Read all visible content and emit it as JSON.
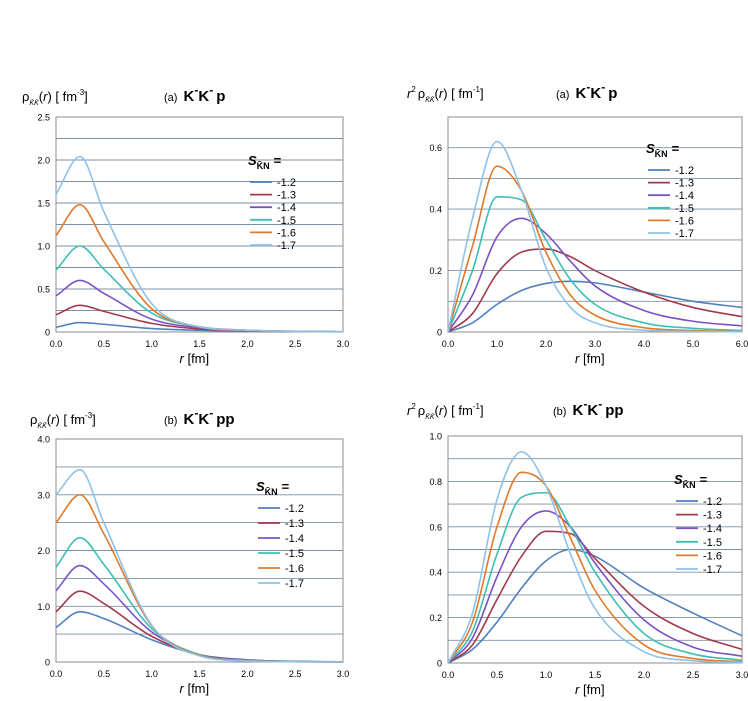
{
  "colors": {
    "s12": "#4f81bd",
    "s13": "#a23a4d",
    "s14": "#7b52c4",
    "s15": "#3cc0b2",
    "s16": "#e07a28",
    "s17": "#8ec2e8",
    "grid": "#7f8fa0",
    "frame": "#8c8c8c"
  },
  "chart_data": [
    {
      "type": "line",
      "panel": "(a)",
      "system": "K̄K̄p",
      "ylabel": "ρK̄K̄(r)  [fm⁻³]",
      "xlabel": "r  [fm]",
      "xlim": [
        0,
        3.0
      ],
      "ylim": [
        0,
        2.5
      ],
      "xticks": [
        "0.0",
        "0.5",
        "1.0",
        "1.5",
        "2.0",
        "2.5",
        "3.0"
      ],
      "yticks": [
        "0",
        "0.5",
        "1.0",
        "1.5",
        "2.0",
        "2.5"
      ],
      "legend_title": "S K̄N =",
      "legend_position": "right",
      "series": [
        {
          "name": "-1.2",
          "color_key": "s12",
          "x": [
            0,
            0.25,
            0.5,
            1.0,
            1.5,
            2.0,
            2.5,
            3.0
          ],
          "values": [
            0.055,
            0.11,
            0.09,
            0.04,
            0.02,
            0.01,
            0.005,
            0.002
          ]
        },
        {
          "name": "-1.3",
          "color_key": "s13",
          "x": [
            0,
            0.25,
            0.5,
            1.0,
            1.5,
            2.0,
            2.5,
            3.0
          ],
          "values": [
            0.2,
            0.31,
            0.24,
            0.1,
            0.035,
            0.015,
            0.007,
            0.003
          ]
        },
        {
          "name": "-1.4",
          "color_key": "s14",
          "x": [
            0,
            0.25,
            0.5,
            1.0,
            1.5,
            2.0,
            2.5,
            3.0
          ],
          "values": [
            0.42,
            0.6,
            0.45,
            0.15,
            0.05,
            0.02,
            0.008,
            0.003
          ]
        },
        {
          "name": "-1.5",
          "color_key": "s15",
          "x": [
            0,
            0.25,
            0.5,
            1.0,
            1.5,
            2.0,
            2.5,
            3.0
          ],
          "values": [
            0.72,
            1.0,
            0.73,
            0.22,
            0.06,
            0.02,
            0.008,
            0.003
          ]
        },
        {
          "name": "-1.6",
          "color_key": "s16",
          "x": [
            0,
            0.25,
            0.5,
            1.0,
            1.5,
            2.0,
            2.5,
            3.0
          ],
          "values": [
            1.12,
            1.48,
            1.05,
            0.27,
            0.06,
            0.02,
            0.007,
            0.003
          ]
        },
        {
          "name": "-1.7",
          "color_key": "s17",
          "x": [
            0,
            0.25,
            0.5,
            1.0,
            1.5,
            2.0,
            2.5,
            3.0
          ],
          "values": [
            1.6,
            2.04,
            1.4,
            0.33,
            0.06,
            0.02,
            0.007,
            0.003
          ]
        }
      ]
    },
    {
      "type": "line",
      "panel": "(a)",
      "system": "K̄K̄p",
      "ylabel": "r²ρK̄K̄(r)  [fm⁻¹]",
      "xlabel": "r  [fm]",
      "xlim": [
        0,
        6.0
      ],
      "ylim": [
        0,
        0.7
      ],
      "xticks": [
        "0.0",
        "1.0",
        "2.0",
        "3.0",
        "4.0",
        "5.0",
        "6.0"
      ],
      "yticks": [
        "0",
        "0.2",
        "0.4",
        "0.6"
      ],
      "legend_title": "S K̄N =",
      "legend_position": "right",
      "series": [
        {
          "name": "-1.2",
          "color_key": "s12",
          "x": [
            0,
            0.5,
            1.0,
            1.5,
            2.0,
            2.5,
            3.0,
            4.0,
            5.0,
            6.0
          ],
          "values": [
            0,
            0.03,
            0.09,
            0.135,
            0.158,
            0.165,
            0.16,
            0.13,
            0.1,
            0.08
          ]
        },
        {
          "name": "-1.3",
          "color_key": "s13",
          "x": [
            0,
            0.5,
            1.0,
            1.5,
            2.0,
            2.5,
            3.0,
            4.0,
            5.0,
            6.0
          ],
          "values": [
            0,
            0.06,
            0.19,
            0.26,
            0.27,
            0.245,
            0.2,
            0.13,
            0.08,
            0.05
          ]
        },
        {
          "name": "-1.4",
          "color_key": "s14",
          "x": [
            0,
            0.5,
            1.0,
            1.5,
            2.0,
            2.5,
            3.0,
            4.0,
            5.0,
            6.0
          ],
          "values": [
            0,
            0.12,
            0.31,
            0.37,
            0.32,
            0.23,
            0.15,
            0.07,
            0.035,
            0.02
          ]
        },
        {
          "name": "-1.5",
          "color_key": "s15",
          "x": [
            0,
            0.5,
            1.0,
            1.5,
            2.0,
            2.5,
            3.0,
            4.0,
            5.0,
            6.0
          ],
          "values": [
            0,
            0.2,
            0.44,
            0.43,
            0.3,
            0.17,
            0.09,
            0.03,
            0.012,
            0.005
          ]
        },
        {
          "name": "-1.6",
          "color_key": "s16",
          "x": [
            0,
            0.5,
            1.0,
            1.5,
            2.0,
            2.5,
            3.0,
            4.0,
            5.0,
            6.0
          ],
          "values": [
            0,
            0.28,
            0.54,
            0.46,
            0.26,
            0.12,
            0.055,
            0.014,
            0.005,
            0.002
          ]
        },
        {
          "name": "-1.7",
          "color_key": "s17",
          "x": [
            0,
            0.5,
            1.0,
            1.5,
            2.0,
            2.5,
            3.0,
            4.0,
            5.0,
            6.0
          ],
          "values": [
            0,
            0.37,
            0.62,
            0.46,
            0.21,
            0.08,
            0.03,
            0.006,
            0.002,
            0.001
          ]
        }
      ]
    },
    {
      "type": "line",
      "panel": "(b)",
      "system": "K̄K̄pp",
      "ylabel": "ρK̄K̄(r)  [fm⁻³]",
      "xlabel": "r  [fm]",
      "xlim": [
        0,
        3.0
      ],
      "ylim": [
        0,
        4.0
      ],
      "xticks": [
        "0.0",
        "0.5",
        "1.0",
        "1.5",
        "2.0",
        "2.5",
        "3.0"
      ],
      "yticks": [
        "0",
        "1.0",
        "2.0",
        "3.0",
        "4.0"
      ],
      "legend_title": "S K̄N =",
      "legend_position": "right",
      "series": [
        {
          "name": "-1.2",
          "color_key": "s12",
          "x": [
            0,
            0.25,
            0.5,
            1.0,
            1.5,
            2.0,
            2.5,
            3.0
          ],
          "values": [
            0.62,
            0.9,
            0.78,
            0.4,
            0.13,
            0.04,
            0.012,
            0.004
          ]
        },
        {
          "name": "-1.3",
          "color_key": "s13",
          "x": [
            0,
            0.25,
            0.5,
            1.0,
            1.5,
            2.0,
            2.5,
            3.0
          ],
          "values": [
            0.9,
            1.27,
            1.05,
            0.46,
            0.13,
            0.035,
            0.01,
            0.003
          ]
        },
        {
          "name": "-1.4",
          "color_key": "s14",
          "x": [
            0,
            0.25,
            0.5,
            1.0,
            1.5,
            2.0,
            2.5,
            3.0
          ],
          "values": [
            1.28,
            1.73,
            1.4,
            0.54,
            0.13,
            0.03,
            0.008,
            0.002
          ]
        },
        {
          "name": "-1.5",
          "color_key": "s15",
          "x": [
            0,
            0.25,
            0.5,
            1.0,
            1.5,
            2.0,
            2.5,
            3.0
          ],
          "values": [
            1.7,
            2.23,
            1.75,
            0.6,
            0.13,
            0.028,
            0.007,
            0.002
          ]
        },
        {
          "name": "-1.6",
          "color_key": "s16",
          "x": [
            0,
            0.25,
            0.5,
            1.0,
            1.5,
            2.0,
            2.5,
            3.0
          ],
          "values": [
            2.5,
            3.0,
            2.3,
            0.65,
            0.12,
            0.022,
            0.005,
            0.001
          ]
        },
        {
          "name": "-1.7",
          "color_key": "s17",
          "x": [
            0,
            0.25,
            0.5,
            1.0,
            1.5,
            2.0,
            2.5,
            3.0
          ],
          "values": [
            3.0,
            3.45,
            2.5,
            0.66,
            0.11,
            0.018,
            0.004,
            0.001
          ]
        }
      ]
    },
    {
      "type": "line",
      "panel": "(b)",
      "system": "K̄K̄pp",
      "ylabel": "r²ρK̄K̄(r)  [fm⁻¹]",
      "xlabel": "r  [fm]",
      "xlim": [
        0,
        3.0
      ],
      "ylim": [
        0,
        1.0
      ],
      "xticks": [
        "0.0",
        "0.5",
        "1.0",
        "1.5",
        "2.0",
        "2.5",
        "3.0"
      ],
      "yticks": [
        "0",
        "0.2",
        "0.4",
        "0.6",
        "0.8",
        "1.0"
      ],
      "legend_title": "S K̄N =",
      "legend_position": "right",
      "series": [
        {
          "name": "-1.2",
          "color_key": "s12",
          "x": [
            0,
            0.25,
            0.5,
            0.75,
            1.0,
            1.25,
            1.5,
            2.0,
            2.5,
            3.0
          ],
          "values": [
            0,
            0.06,
            0.18,
            0.33,
            0.45,
            0.5,
            0.47,
            0.33,
            0.22,
            0.12
          ]
        },
        {
          "name": "-1.3",
          "color_key": "s13",
          "x": [
            0,
            0.25,
            0.5,
            0.75,
            1.0,
            1.25,
            1.5,
            2.0,
            2.5,
            3.0
          ],
          "values": [
            0,
            0.08,
            0.28,
            0.47,
            0.58,
            0.57,
            0.46,
            0.25,
            0.13,
            0.06
          ]
        },
        {
          "name": "-1.4",
          "color_key": "s14",
          "x": [
            0,
            0.25,
            0.5,
            0.75,
            1.0,
            1.25,
            1.5,
            2.0,
            2.5,
            3.0
          ],
          "values": [
            0,
            0.11,
            0.38,
            0.6,
            0.67,
            0.6,
            0.44,
            0.19,
            0.07,
            0.03
          ]
        },
        {
          "name": "-1.5",
          "color_key": "s15",
          "x": [
            0,
            0.25,
            0.5,
            0.75,
            1.0,
            1.25,
            1.5,
            2.0,
            2.5,
            3.0
          ],
          "values": [
            0,
            0.14,
            0.48,
            0.73,
            0.75,
            0.6,
            0.4,
            0.13,
            0.04,
            0.012
          ]
        },
        {
          "name": "-1.6",
          "color_key": "s16",
          "x": [
            0,
            0.25,
            0.5,
            0.75,
            1.0,
            1.25,
            1.5,
            2.0,
            2.5,
            3.0
          ],
          "values": [
            0,
            0.18,
            0.6,
            0.84,
            0.78,
            0.55,
            0.32,
            0.08,
            0.02,
            0.005
          ]
        },
        {
          "name": "-1.7",
          "color_key": "s17",
          "x": [
            0,
            0.25,
            0.5,
            0.75,
            1.0,
            1.25,
            1.5,
            2.0,
            2.5,
            3.0
          ],
          "values": [
            0,
            0.22,
            0.72,
            0.93,
            0.78,
            0.48,
            0.24,
            0.05,
            0.01,
            0.002
          ]
        }
      ]
    }
  ]
}
